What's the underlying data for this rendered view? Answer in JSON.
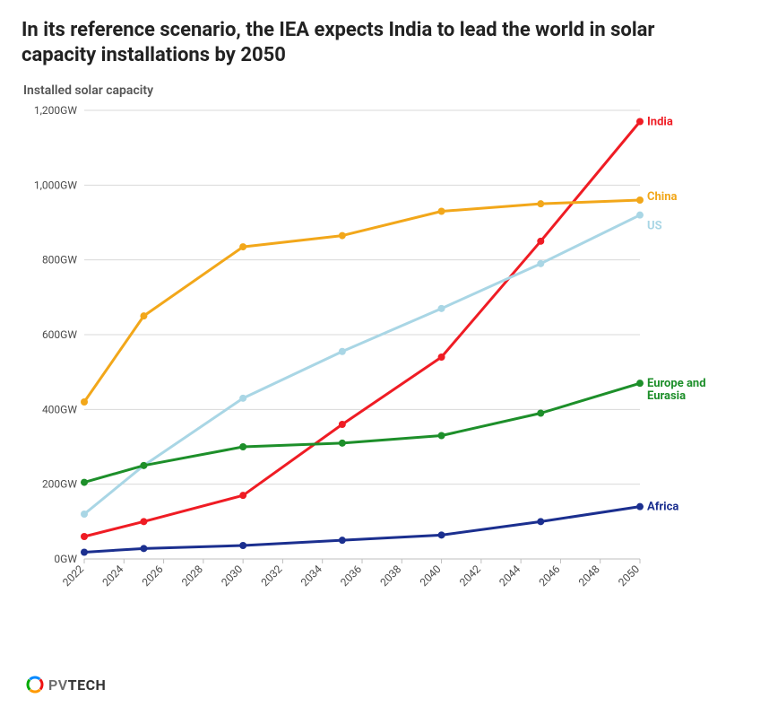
{
  "title": "In its reference scenario, the IEA expects India to lead the world in solar capacity installations by 2050",
  "ylabel": "Installed solar capacity",
  "chart": {
    "type": "line",
    "background_color": "#ffffff",
    "grid_color": "#d9d9d9",
    "axis_text_color": "#4a4a4a",
    "title_fontsize": 22,
    "label_fontsize": 14,
    "line_width": 3,
    "marker_radius": 4,
    "x": {
      "ticks": [
        2022,
        2024,
        2026,
        2028,
        2030,
        2032,
        2034,
        2036,
        2038,
        2040,
        2042,
        2044,
        2046,
        2048,
        2050
      ],
      "min": 2022,
      "max": 2050,
      "tick_label_rotation": -45
    },
    "y": {
      "min": 0,
      "max": 1200,
      "ticks": [
        0,
        200,
        400,
        600,
        800,
        1000,
        1200
      ],
      "tick_labels": [
        "0GW",
        "200GW",
        "400GW",
        "600GW",
        "800GW",
        "1,000GW",
        "1,200GW"
      ]
    },
    "series": [
      {
        "name": "India",
        "color": "#ef1c24",
        "points": [
          [
            2022,
            60
          ],
          [
            2025,
            100
          ],
          [
            2030,
            170
          ],
          [
            2035,
            360
          ],
          [
            2040,
            540
          ],
          [
            2045,
            850
          ],
          [
            2050,
            1170
          ]
        ]
      },
      {
        "name": "China",
        "color": "#f2a71a",
        "points": [
          [
            2022,
            420
          ],
          [
            2025,
            650
          ],
          [
            2030,
            835
          ],
          [
            2035,
            865
          ],
          [
            2040,
            930
          ],
          [
            2045,
            950
          ],
          [
            2050,
            960
          ]
        ]
      },
      {
        "name": "US",
        "color": "#a9d6e5",
        "points": [
          [
            2022,
            120
          ],
          [
            2025,
            250
          ],
          [
            2030,
            430
          ],
          [
            2035,
            555
          ],
          [
            2040,
            670
          ],
          [
            2045,
            790
          ],
          [
            2050,
            920
          ]
        ]
      },
      {
        "name": "Europe and Eurasia",
        "color": "#1d8f2a",
        "points": [
          [
            2022,
            205
          ],
          [
            2025,
            250
          ],
          [
            2030,
            300
          ],
          [
            2035,
            310
          ],
          [
            2040,
            330
          ],
          [
            2045,
            390
          ],
          [
            2050,
            470
          ]
        ]
      },
      {
        "name": "Africa",
        "color": "#1b2f8f",
        "points": [
          [
            2022,
            18
          ],
          [
            2025,
            28
          ],
          [
            2030,
            36
          ],
          [
            2035,
            50
          ],
          [
            2040,
            64
          ],
          [
            2045,
            100
          ],
          [
            2050,
            140
          ]
        ]
      }
    ],
    "label_order": [
      "India",
      "China",
      "US",
      "Europe and Eurasia",
      "Africa"
    ]
  },
  "logo": {
    "text_light": "PV",
    "text_bold": "TECH",
    "ring_colors": [
      "#e11",
      "#f90",
      "#0a0",
      "#08f"
    ]
  }
}
